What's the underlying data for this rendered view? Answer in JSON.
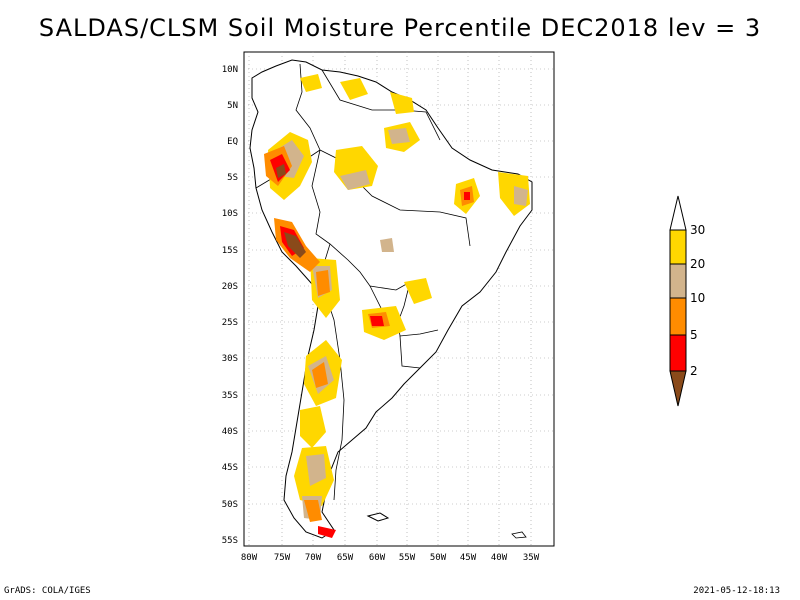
{
  "title": "SALDAS/CLSM Soil Moisture Percentile DEC2018 lev = 3",
  "lat_labels": [
    "10N",
    "5N",
    "EQ",
    "5S",
    "10S",
    "15S",
    "20S",
    "25S",
    "30S",
    "35S",
    "40S",
    "45S",
    "50S",
    "55S"
  ],
  "lon_labels": [
    "80W",
    "75W",
    "70W",
    "65W",
    "60W",
    "55W",
    "50W",
    "45W",
    "40W",
    "35W"
  ],
  "legend": {
    "labels": [
      "2",
      "5",
      "10",
      "20",
      "30"
    ],
    "colors": [
      "#8a4a1a",
      "#ff0000",
      "#ff8c00",
      "#d2b48c",
      "#ffd700",
      "#ffffff"
    ]
  },
  "footer_left": "GrADS: COLA/IGES",
  "footer_right": "2021-05-12-18:13"
}
